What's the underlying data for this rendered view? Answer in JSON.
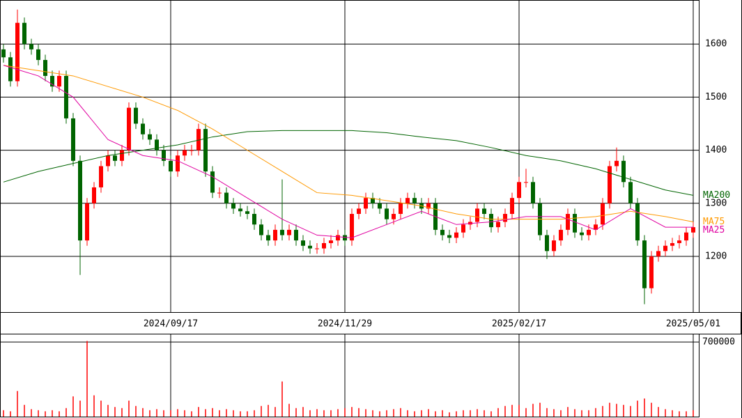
{
  "chart_data": [
    {
      "type": "candlestick",
      "xlim": [
        -0.5,
        99.8
      ],
      "xticks": [
        {
          "value": 24,
          "label": "2024/09/17"
        },
        {
          "value": 49,
          "label": "2024/11/29"
        },
        {
          "value": 74,
          "label": "2025/02/17"
        },
        {
          "value": 99,
          "label": "2025/05/01"
        }
      ],
      "ylim": [
        1095,
        1683
      ],
      "yticks": [
        1200,
        1300,
        1400,
        1500,
        1600
      ],
      "up_color": "#ff0000",
      "down_color": "#006400",
      "open": [
        1590,
        1575,
        1530,
        1640,
        1600,
        1590,
        1570,
        1540,
        1520,
        1540,
        1460,
        1380,
        1230,
        1300,
        1330,
        1370,
        1390,
        1380,
        1400,
        1480,
        1450,
        1430,
        1420,
        1400,
        1380,
        1360,
        1390,
        1400,
        1400,
        1440,
        1360,
        1320,
        1320,
        1300,
        1290,
        1285,
        1280,
        1260,
        1240,
        1230,
        1250,
        1240,
        1250,
        1230,
        1220,
        1215,
        1215,
        1225,
        1230,
        1240,
        1230,
        1280,
        1290,
        1310,
        1300,
        1290,
        1270,
        1280,
        1300,
        1310,
        1300,
        1290,
        1300,
        1250,
        1240,
        1235,
        1245,
        1260,
        1265,
        1290,
        1280,
        1255,
        1265,
        1280,
        1310,
        1340,
        1340,
        1300,
        1240,
        1210,
        1230,
        1250,
        1280,
        1245,
        1240,
        1250,
        1260,
        1300,
        1370,
        1380,
        1340,
        1300,
        1230,
        1140,
        1200,
        1210,
        1220,
        1225,
        1230,
        1245
      ],
      "high": [
        1600,
        1585,
        1665,
        1650,
        1610,
        1600,
        1580,
        1550,
        1550,
        1550,
        1470,
        1390,
        1310,
        1340,
        1380,
        1400,
        1400,
        1410,
        1490,
        1490,
        1460,
        1440,
        1430,
        1410,
        1390,
        1400,
        1410,
        1410,
        1450,
        1450,
        1370,
        1330,
        1330,
        1310,
        1300,
        1295,
        1290,
        1270,
        1250,
        1260,
        1345,
        1260,
        1260,
        1240,
        1230,
        1225,
        1235,
        1240,
        1250,
        1250,
        1290,
        1300,
        1320,
        1320,
        1310,
        1300,
        1290,
        1310,
        1320,
        1320,
        1310,
        1310,
        1310,
        1260,
        1250,
        1255,
        1270,
        1275,
        1300,
        1300,
        1290,
        1275,
        1290,
        1320,
        1350,
        1365,
        1350,
        1310,
        1250,
        1240,
        1260,
        1290,
        1290,
        1255,
        1260,
        1270,
        1310,
        1380,
        1405,
        1390,
        1350,
        1310,
        1240,
        1210,
        1220,
        1230,
        1235,
        1240,
        1255,
        1265
      ],
      "low": [
        1565,
        1520,
        1520,
        1590,
        1580,
        1560,
        1530,
        1510,
        1510,
        1450,
        1370,
        1165,
        1220,
        1290,
        1320,
        1360,
        1370,
        1370,
        1390,
        1440,
        1420,
        1410,
        1390,
        1370,
        1350,
        1350,
        1380,
        1390,
        1390,
        1350,
        1310,
        1310,
        1290,
        1280,
        1275,
        1270,
        1250,
        1230,
        1220,
        1220,
        1230,
        1230,
        1220,
        1210,
        1205,
        1205,
        1205,
        1215,
        1220,
        1220,
        1220,
        1270,
        1280,
        1290,
        1280,
        1260,
        1260,
        1270,
        1290,
        1290,
        1280,
        1280,
        1240,
        1230,
        1225,
        1225,
        1235,
        1250,
        1255,
        1270,
        1245,
        1245,
        1255,
        1270,
        1300,
        1330,
        1290,
        1230,
        1195,
        1200,
        1220,
        1240,
        1235,
        1230,
        1230,
        1240,
        1250,
        1290,
        1360,
        1330,
        1290,
        1220,
        1110,
        1130,
        1190,
        1200,
        1210,
        1215,
        1220,
        1235
      ],
      "close": [
        1575,
        1530,
        1640,
        1600,
        1590,
        1570,
        1540,
        1520,
        1540,
        1460,
        1380,
        1230,
        1300,
        1330,
        1370,
        1390,
        1380,
        1400,
        1480,
        1450,
        1430,
        1420,
        1400,
        1380,
        1360,
        1390,
        1400,
        1400,
        1440,
        1360,
        1320,
        1320,
        1300,
        1290,
        1285,
        1280,
        1260,
        1240,
        1230,
        1250,
        1240,
        1250,
        1230,
        1220,
        1215,
        1215,
        1225,
        1230,
        1240,
        1230,
        1280,
        1290,
        1310,
        1300,
        1290,
        1270,
        1280,
        1300,
        1310,
        1300,
        1290,
        1300,
        1250,
        1240,
        1235,
        1245,
        1260,
        1265,
        1290,
        1280,
        1255,
        1265,
        1280,
        1310,
        1340,
        1340,
        1300,
        1240,
        1210,
        1230,
        1250,
        1280,
        1245,
        1240,
        1250,
        1260,
        1300,
        1370,
        1380,
        1340,
        1300,
        1230,
        1140,
        1200,
        1210,
        1220,
        1225,
        1230,
        1245,
        1255
      ],
      "series": [
        {
          "name": "MA200",
          "color": "#006400",
          "x": [
            0,
            5,
            10,
            15,
            20,
            25,
            30,
            35,
            40,
            45,
            50,
            55,
            60,
            65,
            70,
            75,
            80,
            85,
            90,
            95,
            99
          ],
          "values": [
            1340,
            1360,
            1375,
            1390,
            1400,
            1410,
            1425,
            1435,
            1437,
            1437,
            1437,
            1433,
            1425,
            1418,
            1405,
            1390,
            1380,
            1365,
            1345,
            1325,
            1315
          ]
        },
        {
          "name": "MA75",
          "color": "#ff9900",
          "x": [
            0,
            5,
            10,
            15,
            20,
            25,
            30,
            35,
            40,
            45,
            50,
            55,
            60,
            65,
            70,
            75,
            80,
            85,
            90,
            95,
            99
          ],
          "values": [
            1560,
            1550,
            1540,
            1520,
            1500,
            1475,
            1440,
            1400,
            1360,
            1320,
            1315,
            1305,
            1295,
            1280,
            1270,
            1270,
            1270,
            1275,
            1285,
            1275,
            1265
          ]
        },
        {
          "name": "MA25",
          "color": "#e000a0",
          "x": [
            0,
            5,
            10,
            15,
            20,
            25,
            30,
            35,
            40,
            45,
            50,
            55,
            60,
            65,
            70,
            75,
            80,
            85,
            90,
            95,
            99
          ],
          "values": [
            1560,
            1540,
            1500,
            1420,
            1390,
            1380,
            1350,
            1310,
            1270,
            1240,
            1235,
            1260,
            1285,
            1260,
            1265,
            1275,
            1275,
            1250,
            1290,
            1255,
            1255
          ]
        }
      ]
    },
    {
      "type": "bar",
      "xlim": [
        -0.5,
        99.8
      ],
      "ylim": [
        0,
        772000
      ],
      "yticks": [
        700000
      ],
      "color": "#ff0000",
      "values": [
        60000,
        50000,
        240000,
        110000,
        70000,
        60000,
        50000,
        60000,
        50000,
        80000,
        190000,
        150000,
        710000,
        200000,
        150000,
        110000,
        90000,
        80000,
        150000,
        100000,
        80000,
        60000,
        70000,
        60000,
        60000,
        70000,
        60000,
        50000,
        90000,
        70000,
        80000,
        60000,
        70000,
        60000,
        50000,
        50000,
        60000,
        100000,
        110000,
        90000,
        330000,
        120000,
        80000,
        90000,
        60000,
        70000,
        60000,
        60000,
        70000,
        80000,
        90000,
        80000,
        70000,
        60000,
        50000,
        60000,
        70000,
        80000,
        60000,
        50000,
        60000,
        70000,
        50000,
        60000,
        40000,
        50000,
        60000,
        60000,
        70000,
        60000,
        50000,
        80000,
        100000,
        110000,
        110000,
        80000,
        120000,
        130000,
        80000,
        70000,
        60000,
        90000,
        70000,
        60000,
        60000,
        80000,
        100000,
        130000,
        120000,
        110000,
        100000,
        150000,
        170000,
        130000,
        90000,
        70000,
        60000,
        50000,
        50000,
        60000
      ]
    }
  ]
}
